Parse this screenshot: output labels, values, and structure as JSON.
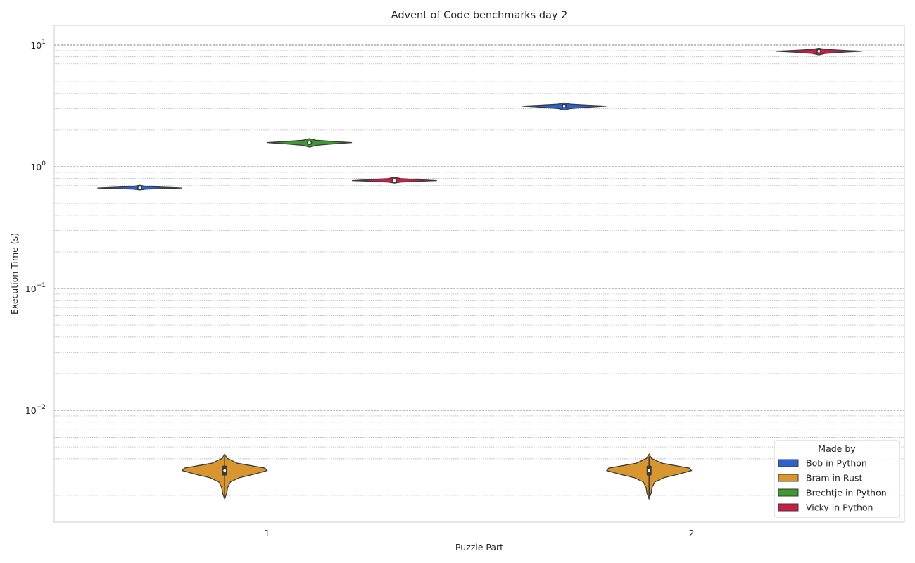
{
  "chart_data": {
    "type": "violin",
    "title": "Advent of Code benchmarks day 2",
    "xlabel": "Puzzle Part",
    "ylabel": "Execution Time (s)",
    "yscale": "log",
    "ylim": [
      0.0013,
      15
    ],
    "y_major_ticks": [
      {
        "value": 10,
        "base": "10",
        "exp": "1"
      },
      {
        "value": 1,
        "base": "10",
        "exp": "0"
      },
      {
        "value": 0.1,
        "base": "10",
        "exp": "−1"
      },
      {
        "value": 0.01,
        "base": "10",
        "exp": "−2"
      }
    ],
    "categories": [
      "1",
      "2"
    ],
    "grid": true,
    "legend": {
      "title": "Made by",
      "position": "lower-right"
    },
    "series": [
      {
        "name": "Bob in Python",
        "color": "#2a62d1",
        "values": [
          {
            "category": "1",
            "median": 0.67,
            "min": 0.655,
            "max": 0.695
          },
          {
            "category": "2",
            "median": 3.15,
            "min": 2.95,
            "max": 3.3
          }
        ]
      },
      {
        "name": "Bram in Rust",
        "color": "#d7962f",
        "values": [
          {
            "category": "1",
            "median": 0.0032,
            "min": 0.0019,
            "max": 0.0043
          },
          {
            "category": "2",
            "median": 0.0032,
            "min": 0.0019,
            "max": 0.0043
          }
        ]
      },
      {
        "name": "Brechtje in Python",
        "color": "#3c9a30",
        "values": [
          {
            "category": "1",
            "median": 1.58,
            "min": 1.47,
            "max": 1.68
          }
        ]
      },
      {
        "name": "Vicky in Python",
        "color": "#c81e45",
        "values": [
          {
            "category": "1",
            "median": 0.77,
            "min": 0.745,
            "max": 0.81
          },
          {
            "category": "2",
            "median": 8.9,
            "min": 8.4,
            "max": 9.3
          }
        ]
      }
    ]
  }
}
